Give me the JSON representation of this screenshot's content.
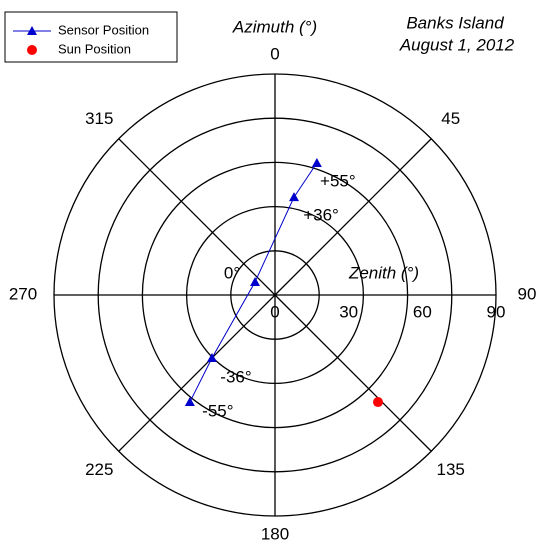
{
  "chart_data": {
    "type": "polar",
    "title": "Banks Island",
    "subtitle": "August 1, 2012",
    "theta_label": "Azimuth (°)",
    "r_label": "Zenith (°)",
    "rlim": [
      0,
      90
    ],
    "rticks": [
      0,
      30,
      60,
      90
    ],
    "rgrid": [
      18,
      36,
      54,
      72,
      90
    ],
    "thetaticks": [
      0,
      45,
      90,
      135,
      180,
      225,
      270,
      315
    ],
    "series": [
      {
        "name": "Sensor Position",
        "color": "#0000cc",
        "marker": "triangle",
        "line": true,
        "theta": [
          17.6,
          11,
          303,
          225,
          218.5
        ],
        "r": [
          56.4,
          40.6,
          9.7,
          36.3,
          55.7
        ],
        "point_labels": [
          "+55°",
          "+36°",
          "0°",
          "-36°",
          "-55°"
        ]
      },
      {
        "name": "Sun Position",
        "color": "#ff0000",
        "marker": "circle",
        "line": false,
        "theta": [
          136.1
        ],
        "r": [
          60.5
        ]
      }
    ]
  }
}
